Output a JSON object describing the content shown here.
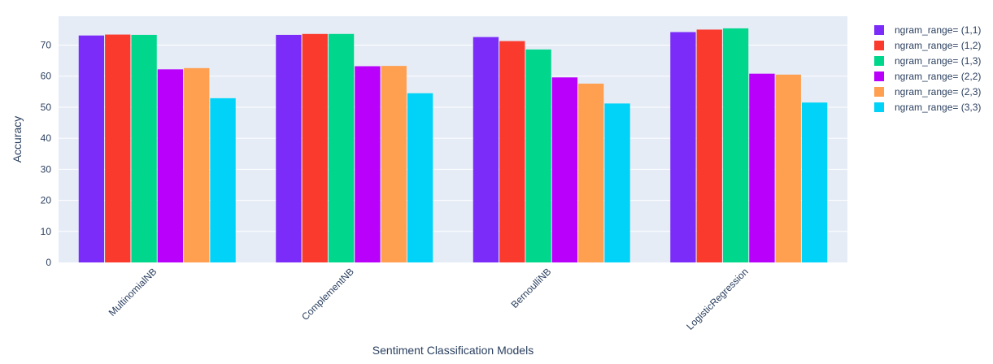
{
  "chart_data": {
    "type": "bar",
    "xlabel": "Sentiment Classification Models",
    "ylabel": "Accuracy",
    "ylim": [
      0,
      79.3
    ],
    "yticks": [
      0,
      10,
      20,
      30,
      40,
      50,
      60,
      70
    ],
    "grid": true,
    "legend_position": "top-right",
    "plot_background": "#e5ecf6",
    "categories": [
      "MultinomialNB",
      "ComplementNB",
      "BernoulliNB",
      "LogisticRegression"
    ],
    "series": [
      {
        "name": "ngram_range= (1,1)",
        "color": "#7b2cf9",
        "values": [
          73.1,
          73.3,
          72.6,
          74.2
        ]
      },
      {
        "name": "ngram_range= (1,2)",
        "color": "#fb3a2e",
        "values": [
          73.4,
          73.6,
          71.3,
          75.0
        ]
      },
      {
        "name": "ngram_range= (1,3)",
        "color": "#00d68c",
        "values": [
          73.3,
          73.6,
          68.6,
          75.4
        ]
      },
      {
        "name": "ngram_range= (2,2)",
        "color": "#b800fb",
        "values": [
          62.2,
          63.2,
          59.6,
          60.8
        ]
      },
      {
        "name": "ngram_range= (2,3)",
        "color": "#ff9f50",
        "values": [
          62.6,
          63.3,
          57.6,
          60.5
        ]
      },
      {
        "name": "ngram_range= (3,3)",
        "color": "#00d3f7",
        "values": [
          52.9,
          54.5,
          51.2,
          51.5
        ]
      }
    ]
  }
}
